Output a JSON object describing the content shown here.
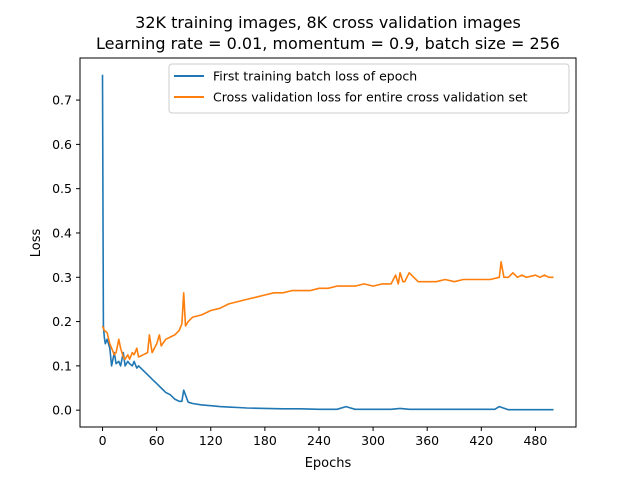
{
  "chart_data": {
    "type": "line",
    "title_line1": "32K training images, 8K cross validation images",
    "title_line2": "Learning rate = 0.01, momentum = 0.9, batch size = 256",
    "xlabel": "Epochs",
    "ylabel": "Loss",
    "xlim": [
      -25,
      525
    ],
    "ylim": [
      -0.038,
      0.795
    ],
    "xticks": [
      0,
      60,
      120,
      180,
      240,
      300,
      360,
      420,
      480
    ],
    "xtick_labels": [
      "0",
      "60",
      "120",
      "180",
      "240",
      "300",
      "360",
      "420",
      "480"
    ],
    "yticks": [
      0.0,
      0.1,
      0.2,
      0.3,
      0.4,
      0.5,
      0.6,
      0.7
    ],
    "ytick_labels": [
      "0.0",
      "0.1",
      "0.2",
      "0.3",
      "0.4",
      "0.5",
      "0.6",
      "0.7"
    ],
    "grid": false,
    "legend_position": "top-right",
    "series": [
      {
        "name": "First training batch loss of epoch",
        "color": "#1f77b4",
        "x": [
          0,
          1,
          2,
          3,
          5,
          8,
          10,
          13,
          15,
          18,
          20,
          23,
          25,
          28,
          30,
          33,
          35,
          38,
          40,
          45,
          50,
          55,
          60,
          65,
          70,
          75,
          80,
          85,
          88,
          90,
          95,
          100,
          110,
          120,
          130,
          140,
          150,
          160,
          180,
          200,
          220,
          240,
          260,
          270,
          280,
          300,
          320,
          330,
          340,
          360,
          380,
          400,
          420,
          435,
          440,
          450,
          470,
          490,
          500
        ],
        "y": [
          0.757,
          0.19,
          0.165,
          0.15,
          0.16,
          0.14,
          0.1,
          0.13,
          0.105,
          0.11,
          0.1,
          0.13,
          0.1,
          0.11,
          0.105,
          0.1,
          0.11,
          0.095,
          0.1,
          0.09,
          0.08,
          0.07,
          0.06,
          0.05,
          0.04,
          0.035,
          0.025,
          0.02,
          0.02,
          0.045,
          0.018,
          0.015,
          0.012,
          0.01,
          0.008,
          0.007,
          0.006,
          0.005,
          0.004,
          0.003,
          0.003,
          0.002,
          0.002,
          0.008,
          0.002,
          0.002,
          0.002,
          0.004,
          0.002,
          0.002,
          0.002,
          0.002,
          0.002,
          0.002,
          0.008,
          0.001,
          0.001,
          0.001,
          0.001
        ]
      },
      {
        "name": "Cross validation loss for entire cross validation set",
        "color": "#ff7f0e",
        "x": [
          0,
          2,
          5,
          8,
          10,
          13,
          15,
          18,
          20,
          23,
          25,
          28,
          30,
          33,
          35,
          38,
          40,
          45,
          50,
          52,
          55,
          60,
          63,
          65,
          70,
          75,
          80,
          85,
          88,
          90,
          92,
          95,
          100,
          110,
          120,
          130,
          140,
          150,
          160,
          170,
          180,
          190,
          200,
          210,
          220,
          230,
          240,
          250,
          260,
          270,
          280,
          290,
          300,
          310,
          320,
          325,
          328,
          330,
          333,
          335,
          340,
          350,
          360,
          370,
          380,
          390,
          400,
          410,
          420,
          430,
          440,
          442,
          445,
          450,
          455,
          460,
          465,
          470,
          480,
          485,
          490,
          495,
          500
        ],
        "y": [
          0.19,
          0.18,
          0.175,
          0.15,
          0.14,
          0.125,
          0.13,
          0.16,
          0.14,
          0.12,
          0.115,
          0.125,
          0.115,
          0.13,
          0.125,
          0.14,
          0.12,
          0.125,
          0.13,
          0.17,
          0.13,
          0.15,
          0.17,
          0.145,
          0.16,
          0.165,
          0.17,
          0.18,
          0.195,
          0.265,
          0.19,
          0.2,
          0.21,
          0.215,
          0.225,
          0.23,
          0.24,
          0.245,
          0.25,
          0.255,
          0.26,
          0.265,
          0.265,
          0.27,
          0.27,
          0.27,
          0.275,
          0.275,
          0.28,
          0.28,
          0.28,
          0.285,
          0.28,
          0.285,
          0.285,
          0.305,
          0.285,
          0.31,
          0.29,
          0.29,
          0.31,
          0.29,
          0.29,
          0.29,
          0.295,
          0.29,
          0.295,
          0.295,
          0.295,
          0.295,
          0.3,
          0.335,
          0.3,
          0.3,
          0.31,
          0.3,
          0.305,
          0.3,
          0.305,
          0.3,
          0.305,
          0.3,
          0.3
        ]
      }
    ]
  }
}
